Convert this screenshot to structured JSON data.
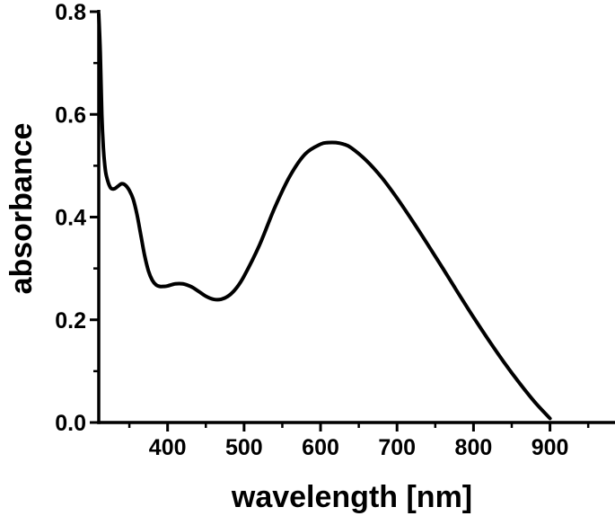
{
  "chart_data": {
    "type": "line",
    "xlabel": "wavelength [nm]",
    "ylabel": "absorbance",
    "xlim": [
      310,
      985
    ],
    "ylim": [
      0.0,
      0.8
    ],
    "x_ticks": [
      400,
      500,
      600,
      700,
      800,
      900
    ],
    "y_ticks": [
      "0.0",
      "0.2",
      "0.4",
      "0.6",
      "0.8"
    ],
    "y_ticks_values": [
      0.0,
      0.2,
      0.4,
      0.6,
      0.8
    ],
    "grid": false,
    "legend": "none",
    "line_color": "#000000",
    "series": [
      {
        "x": [
          310,
          312,
          314,
          316,
          318,
          320,
          325,
          330,
          335,
          340,
          345,
          350,
          355,
          360,
          365,
          370,
          375,
          380,
          385,
          390,
          395,
          400,
          410,
          420,
          430,
          440,
          450,
          460,
          470,
          480,
          490,
          500,
          520,
          540,
          560,
          580,
          600,
          610,
          620,
          630,
          640,
          660,
          680,
          700,
          720,
          740,
          760,
          780,
          800,
          820,
          840,
          860,
          880,
          900
        ],
        "y": [
          0.795,
          0.72,
          0.6,
          0.535,
          0.5,
          0.48,
          0.458,
          0.455,
          0.46,
          0.465,
          0.462,
          0.452,
          0.435,
          0.405,
          0.365,
          0.325,
          0.295,
          0.277,
          0.268,
          0.265,
          0.265,
          0.266,
          0.27,
          0.27,
          0.265,
          0.256,
          0.246,
          0.24,
          0.24,
          0.247,
          0.262,
          0.285,
          0.345,
          0.418,
          0.48,
          0.523,
          0.542,
          0.545,
          0.545,
          0.542,
          0.535,
          0.51,
          0.477,
          0.437,
          0.393,
          0.347,
          0.3,
          0.252,
          0.205,
          0.16,
          0.117,
          0.077,
          0.04,
          0.008
        ]
      }
    ]
  }
}
